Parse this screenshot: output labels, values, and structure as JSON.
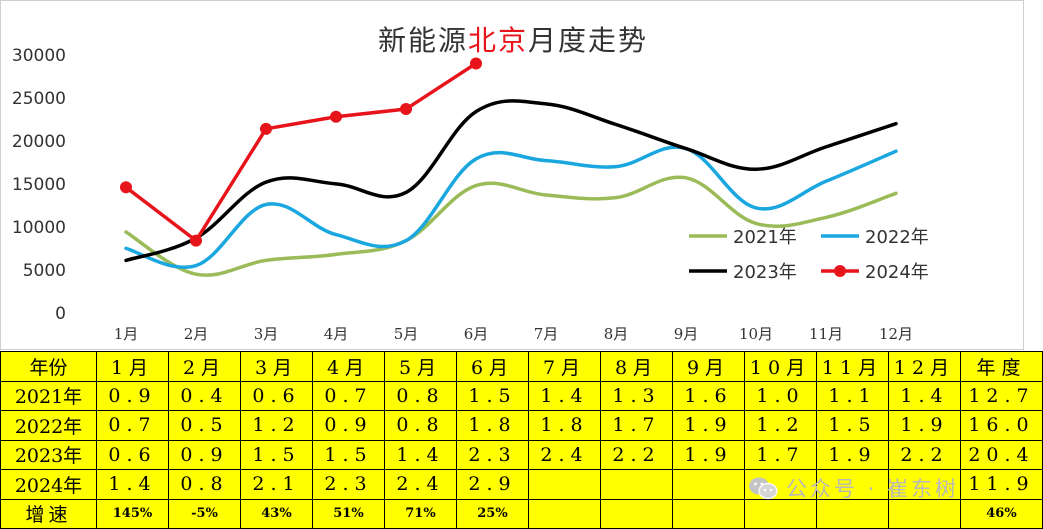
{
  "chart_data": {
    "type": "line",
    "title_prefix": "新能源",
    "title_highlight": "北京",
    "title_suffix": "月度走势",
    "categories": [
      "1月",
      "2月",
      "3月",
      "4月",
      "5月",
      "6月",
      "7月",
      "8月",
      "9月",
      "10月",
      "11月",
      "12月"
    ],
    "ylim": [
      0,
      30000
    ],
    "yticks": [
      0,
      5000,
      10000,
      15000,
      20000,
      25000,
      30000
    ],
    "grid": false,
    "legend_position": "right",
    "series": [
      {
        "name": "2021年",
        "color": "#9bbb59",
        "markers": false,
        "values": [
          9300,
          4400,
          6000,
          6700,
          8300,
          14700,
          13600,
          13300,
          15600,
          10300,
          11000,
          13800
        ]
      },
      {
        "name": "2022年",
        "color": "#1aa7e0",
        "markers": false,
        "values": [
          7400,
          5400,
          12500,
          9000,
          8300,
          17800,
          17600,
          16900,
          19000,
          12100,
          15200,
          18700
        ]
      },
      {
        "name": "2023年",
        "color": "#000000",
        "markers": false,
        "values": [
          6000,
          8600,
          15100,
          14900,
          13900,
          23300,
          24200,
          21800,
          19000,
          16600,
          19200,
          21900
        ]
      },
      {
        "name": "2024年",
        "color": "#e8141b",
        "markers": true,
        "values": [
          14500,
          8300,
          21300,
          22700,
          23600,
          28900,
          null,
          null,
          null,
          null,
          null,
          null
        ]
      }
    ]
  },
  "table": {
    "header": [
      "年份",
      "1月",
      "2月",
      "3月",
      "4月",
      "5月",
      "6月",
      "7月",
      "8月",
      "9月",
      "10月",
      "11月",
      "12月",
      "年度"
    ],
    "rows": [
      [
        "2021年",
        "0.9",
        "0.4",
        "0.6",
        "0.7",
        "0.8",
        "1.5",
        "1.4",
        "1.3",
        "1.6",
        "1.0",
        "1.1",
        "1.4",
        "12.7"
      ],
      [
        "2022年",
        "0.7",
        "0.5",
        "1.2",
        "0.9",
        "0.8",
        "1.8",
        "1.8",
        "1.7",
        "1.9",
        "1.2",
        "1.5",
        "1.9",
        "16.0"
      ],
      [
        "2023年",
        "0.6",
        "0.9",
        "1.5",
        "1.5",
        "1.4",
        "2.3",
        "2.4",
        "2.2",
        "1.9",
        "1.7",
        "1.9",
        "2.2",
        "20.4"
      ],
      [
        "2024年",
        "1.4",
        "0.8",
        "2.1",
        "2.3",
        "2.4",
        "2.9",
        "",
        "",
        "",
        "",
        "",
        "",
        "11.9"
      ]
    ],
    "growth": [
      "增速",
      "145%",
      "-5%",
      "43%",
      "51%",
      "71%",
      "25%",
      "",
      "",
      "",
      "",
      "",
      "",
      "46%"
    ]
  },
  "watermark": {
    "text": "公众号 · 崔东树",
    "icon": "wechat-icon"
  },
  "colors": {
    "table_bg": "#ffff00",
    "highlight": "#e8141b"
  }
}
